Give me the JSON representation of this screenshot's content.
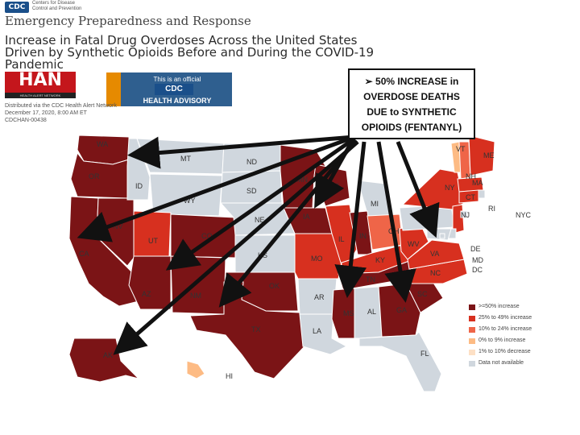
{
  "header": {
    "cdc_logo": "CDC",
    "agency": "Centers for Disease Control and Prevention",
    "title": "Emergency Preparedness and Response",
    "headline": "Increase in Fatal Drug Overdoses Across the United States Driven by Synthetic Opioids Before and During the COVID-19 Pandemic"
  },
  "han": {
    "logo": "HAN",
    "logo_sub": "HEALTH ALERT NETWORK",
    "banner_line1": "This is an official",
    "banner_line2": "CDC",
    "banner_line3": "HEALTH ADVISORY",
    "distributed": "Distributed via the CDC Health Alert Network",
    "date": "December 17, 2020, 8:00 AM ET",
    "id": "CDCHAN-00438"
  },
  "callout": {
    "text_lines": [
      "➢ 50% INCREASE in",
      "OVERDOSE DEATHS",
      "DUE to SYNTHETIC",
      "OPIOIDS (FENTANYL)"
    ]
  },
  "legend": {
    "items": [
      {
        "label": ">=50% increase",
        "color": "#7b1416"
      },
      {
        "label": "25% to 49% increase",
        "color": "#d7301f"
      },
      {
        "label": "10% to 24% increase",
        "color": "#ef6548"
      },
      {
        "label": "0% to 9% increase",
        "color": "#fdbb84"
      },
      {
        "label": "1% to 10% decrease",
        "color": "#fde0c5"
      },
      {
        "label": "Data not available",
        "color": "#d0d7de"
      }
    ]
  },
  "map": {
    "states": [
      {
        "code": "WA",
        "color": "#7b1416"
      },
      {
        "code": "OR",
        "color": "#7b1416"
      },
      {
        "code": "CA",
        "color": "#7b1416"
      },
      {
        "code": "NV",
        "color": "#7b1416"
      },
      {
        "code": "ID",
        "color": "#d0d7de"
      },
      {
        "code": "MT",
        "color": "#d0d7de"
      },
      {
        "code": "WY",
        "color": "#d0d7de"
      },
      {
        "code": "UT",
        "color": "#d7301f"
      },
      {
        "code": "AZ",
        "color": "#7b1416"
      },
      {
        "code": "CO",
        "color": "#7b1416"
      },
      {
        "code": "NM",
        "color": "#7b1416"
      },
      {
        "code": "ND",
        "color": "#d0d7de"
      },
      {
        "code": "SD",
        "color": "#d0d7de"
      },
      {
        "code": "NE",
        "color": "#d0d7de"
      },
      {
        "code": "KS",
        "color": "#d0d7de"
      },
      {
        "code": "OK",
        "color": "#7b1416"
      },
      {
        "code": "TX",
        "color": "#7b1416"
      },
      {
        "code": "MN",
        "color": "#7b1416"
      },
      {
        "code": "IA",
        "color": "#7b1416"
      },
      {
        "code": "MO",
        "color": "#d7301f"
      },
      {
        "code": "AR",
        "color": "#d0d7de"
      },
      {
        "code": "LA",
        "color": "#d0d7de"
      },
      {
        "code": "WI",
        "color": "#7b1416"
      },
      {
        "code": "IL",
        "color": "#d7301f"
      },
      {
        "code": "MI",
        "color": "#d0d7de"
      },
      {
        "code": "IN",
        "color": "#7b1416"
      },
      {
        "code": "OH",
        "color": "#ef6548"
      },
      {
        "code": "KY",
        "color": "#d7301f"
      },
      {
        "code": "TN",
        "color": "#7b1416"
      },
      {
        "code": "MS",
        "color": "#7b1416"
      },
      {
        "code": "AL",
        "color": "#d0d7de"
      },
      {
        "code": "GA",
        "color": "#7b1416"
      },
      {
        "code": "FL",
        "color": "#d0d7de"
      },
      {
        "code": "SC",
        "color": "#7b1416"
      },
      {
        "code": "NC",
        "color": "#d7301f"
      },
      {
        "code": "VA",
        "color": "#d7301f"
      },
      {
        "code": "WV",
        "color": "#d7301f"
      },
      {
        "code": "PA",
        "color": "#d0d7de"
      },
      {
        "code": "NY",
        "color": "#d7301f"
      },
      {
        "code": "VT",
        "color": "#fdbb84"
      },
      {
        "code": "NH",
        "color": "#ef6548"
      },
      {
        "code": "ME",
        "color": "#d7301f"
      },
      {
        "code": "MA",
        "color": "#d7301f"
      },
      {
        "code": "RI",
        "color": "#d0d7de"
      },
      {
        "code": "CT",
        "color": "#d7301f"
      },
      {
        "code": "NJ",
        "color": "#d7301f"
      },
      {
        "code": "DE",
        "color": "#d0d7de"
      },
      {
        "code": "MD",
        "color": "#d0d7de"
      },
      {
        "code": "DC",
        "color": "#d0d7de"
      },
      {
        "code": "NYC",
        "color": "#d0d7de"
      },
      {
        "code": "AK",
        "color": "#7b1416"
      },
      {
        "code": "HI",
        "color": "#fdbb84"
      }
    ]
  }
}
